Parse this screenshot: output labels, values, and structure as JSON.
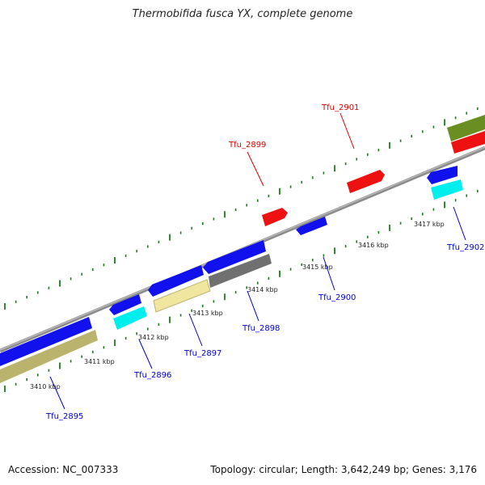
{
  "title": "Thermobifida fusca YX, complete genome",
  "footer": {
    "accession": "Accession: NC_007333",
    "summary": "Topology: circular; Length: 3,642,249 bp; Genes: 3,176"
  },
  "colors": {
    "backbone": "#8a8a8a",
    "ticks": "#1e7a1e",
    "forward_gene": "#ee1111",
    "reverse_gene": "#1111ee",
    "label_forward": "#dd0000",
    "label_reverse": "#0000cc",
    "cyan": "#00eeee",
    "olive": "#6b8e23",
    "khaki": "#f0e6a0",
    "darkkhaki": "#b9b36e",
    "gray": "#707070"
  },
  "ruler": [
    {
      "label": "3410 kbp"
    },
    {
      "label": "3411 kbp"
    },
    {
      "label": "3412 kbp"
    },
    {
      "label": "3413 kbp"
    },
    {
      "label": "3414 kbp"
    },
    {
      "label": "3415 kbp"
    },
    {
      "label": "3416 kbp"
    },
    {
      "label": "3417 kbp"
    }
  ],
  "genes": [
    {
      "name": "Tfu_2895",
      "strand": "reverse"
    },
    {
      "name": "Tfu_2896",
      "strand": "reverse"
    },
    {
      "name": "Tfu_2897",
      "strand": "reverse"
    },
    {
      "name": "Tfu_2898",
      "strand": "reverse"
    },
    {
      "name": "Tfu_2899",
      "strand": "forward"
    },
    {
      "name": "Tfu_2900",
      "strand": "reverse"
    },
    {
      "name": "Tfu_2901",
      "strand": "forward"
    },
    {
      "name": "Tfu_2902",
      "strand": "reverse"
    }
  ]
}
